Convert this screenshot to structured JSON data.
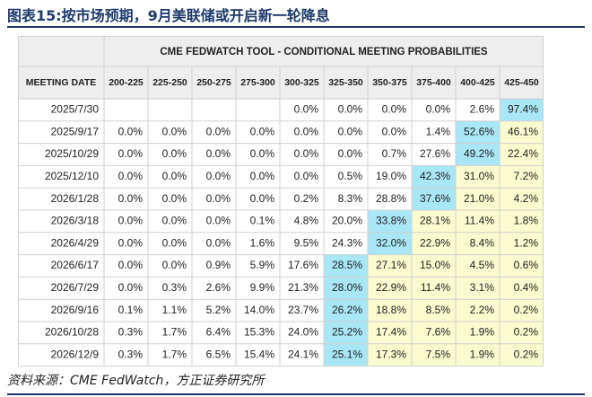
{
  "title": "图表15:按市场预期，9月美联储或开启新一轮降息",
  "source": "资料来源：CME FedWatch，方正证券研究所",
  "colors": {
    "header_bg": "#eeeeee",
    "grid": "#d0d0d0",
    "cyan": "#a9e6f6",
    "yellow": "#fbfbd0",
    "text": "#222222"
  },
  "chart_data": {
    "type": "table",
    "title": "CME FEDWATCH TOOL - CONDITIONAL MEETING PROBABILITIES",
    "row_header": "MEETING DATE",
    "columns": [
      "200-225",
      "225-250",
      "250-275",
      "275-300",
      "300-325",
      "325-350",
      "350-375",
      "375-400",
      "400-425",
      "425-450"
    ],
    "rows": [
      {
        "date": "2025/7/30",
        "values": [
          "",
          "",
          "",
          "",
          "0.0%",
          "0.0%",
          "0.0%",
          "0.0%",
          "2.6%",
          "97.4%"
        ]
      },
      {
        "date": "2025/9/17",
        "values": [
          "0.0%",
          "0.0%",
          "0.0%",
          "0.0%",
          "0.0%",
          "0.0%",
          "0.0%",
          "1.4%",
          "52.6%",
          "46.1%"
        ]
      },
      {
        "date": "2025/10/29",
        "values": [
          "0.0%",
          "0.0%",
          "0.0%",
          "0.0%",
          "0.0%",
          "0.0%",
          "0.7%",
          "27.6%",
          "49.2%",
          "22.4%"
        ]
      },
      {
        "date": "2025/12/10",
        "values": [
          "0.0%",
          "0.0%",
          "0.0%",
          "0.0%",
          "0.0%",
          "0.5%",
          "19.0%",
          "42.3%",
          "31.0%",
          "7.2%"
        ]
      },
      {
        "date": "2026/1/28",
        "values": [
          "0.0%",
          "0.0%",
          "0.0%",
          "0.0%",
          "0.2%",
          "8.3%",
          "28.8%",
          "37.6%",
          "21.0%",
          "4.2%"
        ]
      },
      {
        "date": "2026/3/18",
        "values": [
          "0.0%",
          "0.0%",
          "0.0%",
          "0.1%",
          "4.8%",
          "20.0%",
          "33.8%",
          "28.1%",
          "11.4%",
          "1.8%"
        ]
      },
      {
        "date": "2026/4/29",
        "values": [
          "0.0%",
          "0.0%",
          "0.0%",
          "1.6%",
          "9.5%",
          "24.3%",
          "32.0%",
          "22.9%",
          "8.4%",
          "1.2%"
        ]
      },
      {
        "date": "2026/6/17",
        "values": [
          "0.0%",
          "0.0%",
          "0.9%",
          "5.9%",
          "17.6%",
          "28.5%",
          "27.1%",
          "15.0%",
          "4.5%",
          "0.6%"
        ]
      },
      {
        "date": "2026/7/29",
        "values": [
          "0.0%",
          "0.3%",
          "2.6%",
          "9.9%",
          "21.3%",
          "28.0%",
          "22.9%",
          "11.4%",
          "3.1%",
          "0.4%"
        ]
      },
      {
        "date": "2026/9/16",
        "values": [
          "0.1%",
          "1.1%",
          "5.2%",
          "14.0%",
          "23.7%",
          "26.2%",
          "18.8%",
          "8.5%",
          "2.2%",
          "0.2%"
        ]
      },
      {
        "date": "2026/10/28",
        "values": [
          "0.3%",
          "1.7%",
          "6.4%",
          "15.3%",
          "24.0%",
          "25.2%",
          "17.4%",
          "7.6%",
          "1.9%",
          "0.2%"
        ]
      },
      {
        "date": "2026/12/9",
        "values": [
          "0.3%",
          "1.7%",
          "6.5%",
          "15.4%",
          "24.1%",
          "25.1%",
          "17.3%",
          "7.5%",
          "1.9%",
          "0.2%"
        ]
      }
    ],
    "cell_shading": [
      [
        "",
        "",
        "",
        "",
        "",
        "",
        "",
        "",
        "",
        "cyan"
      ],
      [
        "",
        "",
        "",
        "",
        "",
        "",
        "",
        "",
        "cyan",
        "yellow"
      ],
      [
        "",
        "",
        "",
        "",
        "",
        "",
        "",
        "",
        "cyan",
        "yellow"
      ],
      [
        "",
        "",
        "",
        "",
        "",
        "",
        "",
        "cyan",
        "yellow",
        "yellow"
      ],
      [
        "",
        "",
        "",
        "",
        "",
        "",
        "",
        "cyan",
        "yellow",
        "yellow"
      ],
      [
        "",
        "",
        "",
        "",
        "",
        "",
        "cyan",
        "yellow",
        "yellow",
        "yellow"
      ],
      [
        "",
        "",
        "",
        "",
        "",
        "",
        "cyan",
        "yellow",
        "yellow",
        "yellow"
      ],
      [
        "",
        "",
        "",
        "",
        "",
        "cyan",
        "yellow",
        "yellow",
        "yellow",
        "yellow"
      ],
      [
        "",
        "",
        "",
        "",
        "",
        "cyan",
        "yellow",
        "yellow",
        "yellow",
        "yellow"
      ],
      [
        "",
        "",
        "",
        "",
        "",
        "cyan",
        "yellow",
        "yellow",
        "yellow",
        "yellow"
      ],
      [
        "",
        "",
        "",
        "",
        "",
        "cyan",
        "yellow",
        "yellow",
        "yellow",
        "yellow"
      ],
      [
        "",
        "",
        "",
        "",
        "",
        "cyan",
        "yellow",
        "yellow",
        "yellow",
        "yellow"
      ]
    ]
  }
}
